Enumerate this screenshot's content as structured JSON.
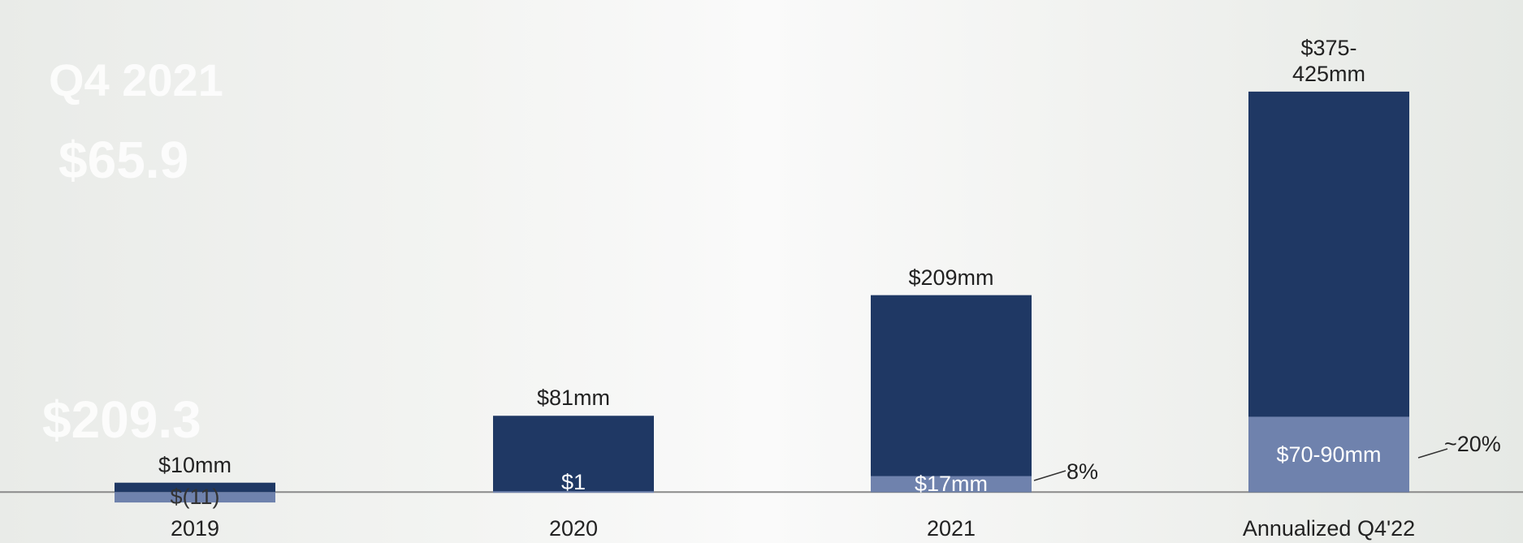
{
  "background_text": [
    "Q4 2021",
    "$65.9",
    "$209.3"
  ],
  "chart_data": {
    "type": "bar",
    "categories": [
      "2019",
      "2020",
      "2021",
      "Annualized Q4'22"
    ],
    "series": [
      {
        "color": "#1f3864",
        "values": [
          10,
          81,
          209,
          425
        ],
        "value_labels": [
          "$10mm",
          "$81mm",
          "$209mm",
          "$375-425mm"
        ]
      },
      {
        "color": "#6f82ad",
        "values": [
          -11,
          1,
          17,
          80
        ],
        "value_labels": [
          "$(11)",
          "$1",
          "$17mm",
          "$70-90mm"
        ]
      }
    ],
    "annotations": [
      "8%",
      "~20%"
    ],
    "ylim": [
      -54,
      480
    ]
  }
}
